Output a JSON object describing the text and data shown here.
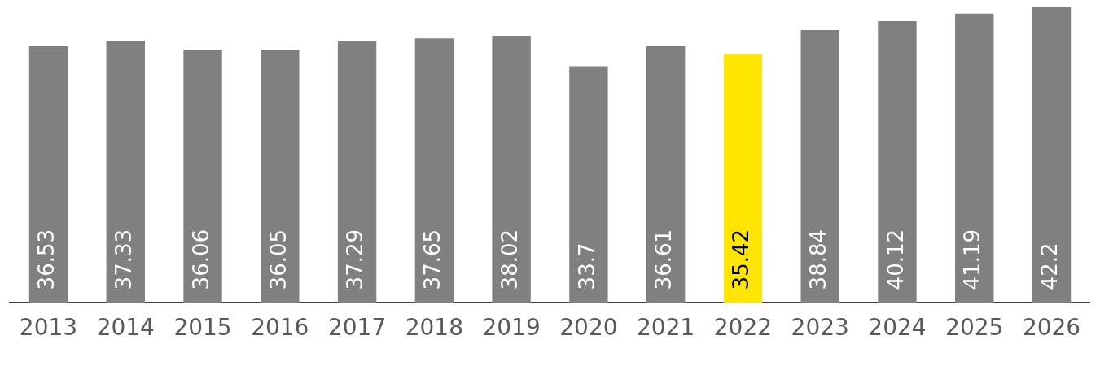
{
  "chart_data": {
    "type": "bar",
    "categories": [
      "2013",
      "2014",
      "2015",
      "2016",
      "2017",
      "2018",
      "2019",
      "2020",
      "2021",
      "2022",
      "2023",
      "2024",
      "2025",
      "2026"
    ],
    "values": [
      36.53,
      37.33,
      36.06,
      36.05,
      37.29,
      37.65,
      38.02,
      33.7,
      36.61,
      35.42,
      38.84,
      40.12,
      41.19,
      42.2
    ],
    "colors": [
      "#808080",
      "#808080",
      "#808080",
      "#808080",
      "#808080",
      "#808080",
      "#808080",
      "#808080",
      "#808080",
      "#ffe600",
      "#808080",
      "#808080",
      "#808080",
      "#808080"
    ],
    "data_labels": true,
    "grid": false,
    "legend": false
  }
}
